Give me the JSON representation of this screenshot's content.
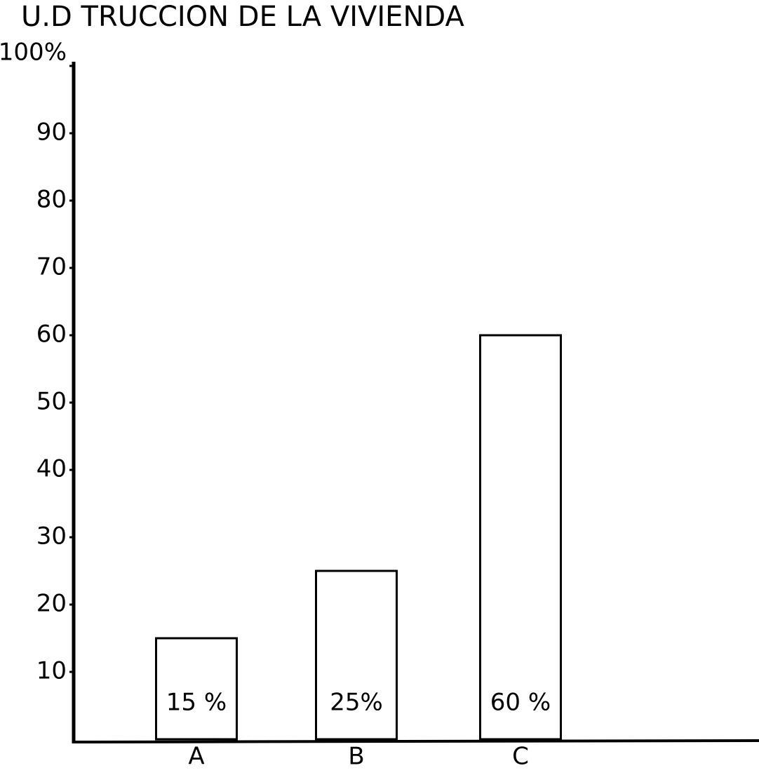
{
  "chart_data": {
    "type": "bar",
    "title": "U.D TRUCCION DE LA VIVIENDA",
    "categories": [
      "A",
      "B",
      "C"
    ],
    "values": [
      15,
      25,
      60
    ],
    "value_labels": [
      "15 %",
      "25%",
      "60 %"
    ],
    "color": "#ffffff",
    "ylim": [
      0,
      100
    ],
    "yticks": [
      10,
      20,
      30,
      40,
      50,
      60,
      70,
      80,
      90,
      {
        "value": 100,
        "label": "100%"
      }
    ],
    "grid": false
  }
}
